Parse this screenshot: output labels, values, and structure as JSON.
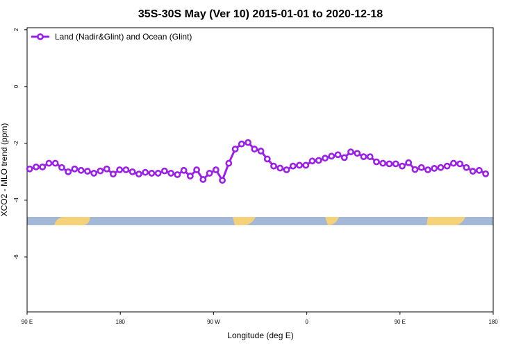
{
  "chart_data": {
    "type": "line",
    "title": "35S-30S May (Ver 10)   2015-01-01 to 2020-12-18",
    "x_label": "Longitude (deg E)",
    "y_label": "XCO2 - MLO trend (ppm)",
    "xlim": [
      90,
      540
    ],
    "xticks": [
      {
        "value": 90,
        "label": "90 E"
      },
      180,
      {
        "value": 270,
        "label": "90 W"
      },
      {
        "value": 360,
        "label": "0"
      },
      {
        "value": 450,
        "label": "90 E"
      },
      {
        "value": 540,
        "label": "180"
      }
    ],
    "ylim": [
      -7.93,
      2.07
    ],
    "yticks": [
      2,
      0,
      -2,
      -4,
      -6
    ],
    "legend": "top-left",
    "x": [
      92.5,
      98.7,
      104.9,
      111.1,
      117.3,
      123.5,
      129.7,
      135.9,
      142.1,
      148.3,
      154.5,
      160.7,
      166.9,
      173.1,
      179.3,
      185.5,
      191.7,
      197.9,
      204.1,
      210.3,
      216.5,
      222.7,
      228.9,
      235.1,
      241.3,
      247.5,
      253.7,
      259.9,
      266.1,
      272.3,
      278.5,
      284.7,
      290.9,
      297.1,
      303.3,
      309.5,
      315.7,
      321.9,
      328.1,
      334.3,
      340.5,
      346.7,
      352.9,
      359.1,
      365.3,
      371.5,
      377.7,
      383.9,
      390.1,
      396.3,
      402.5,
      408.7,
      414.9,
      421.1,
      427.3,
      433.5,
      439.7,
      445.9,
      452.1,
      458.3,
      464.5,
      470.7,
      476.9,
      483.1,
      489.3,
      495.5,
      501.7,
      507.9,
      514.1,
      520.3,
      526.5,
      532.7
    ],
    "series": [
      {
        "name": "Land (Nadir&Glint) and Ocean (Glint)",
        "color": "#9b1fe8",
        "values": [
          -2.9,
          -2.83,
          -2.83,
          -2.7,
          -2.7,
          -2.85,
          -3.0,
          -2.9,
          -2.95,
          -2.98,
          -3.05,
          -2.97,
          -2.9,
          -3.08,
          -2.93,
          -2.93,
          -3.0,
          -3.08,
          -3.02,
          -3.05,
          -3.05,
          -2.97,
          -3.05,
          -3.1,
          -2.95,
          -3.15,
          -2.93,
          -3.27,
          -3.05,
          -2.93,
          -3.3,
          -2.7,
          -2.2,
          -2.02,
          -1.97,
          -2.2,
          -2.27,
          -2.55,
          -2.8,
          -2.87,
          -2.93,
          -2.8,
          -2.77,
          -2.77,
          -2.62,
          -2.6,
          -2.52,
          -2.45,
          -2.4,
          -2.5,
          -2.3,
          -2.35,
          -2.47,
          -2.47,
          -2.65,
          -2.7,
          -2.72,
          -2.72,
          -2.8,
          -2.68,
          -2.92,
          -2.85,
          -2.93,
          -2.88,
          -2.85,
          -2.8,
          -2.7,
          -2.72,
          -2.85,
          -2.98,
          -2.95,
          -3.07
        ]
      }
    ]
  }
}
